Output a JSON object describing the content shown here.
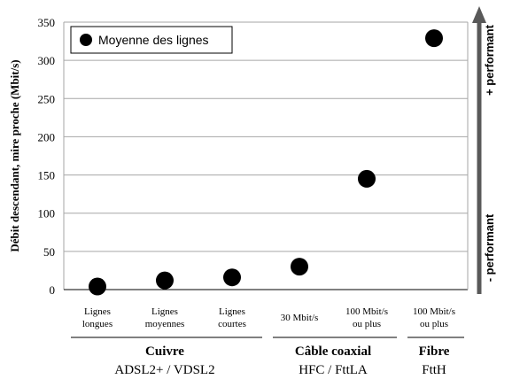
{
  "chart_data": {
    "type": "scatter",
    "ylabel": "Débit descendant, mire proche (Mbit/s)",
    "ylim": [
      0,
      350
    ],
    "yticks": [
      0,
      50,
      100,
      150,
      200,
      250,
      300,
      350
    ],
    "grid": "horizontal",
    "legend_position": "top-left",
    "categories": [
      [
        "Lignes",
        "longues"
      ],
      [
        "Lignes",
        "moyennes"
      ],
      [
        "Lignes",
        "courtes"
      ],
      [
        "30 Mbit/s"
      ],
      [
        "100 Mbit/s",
        "ou plus"
      ],
      [
        "100 Mbit/s",
        "ou plus"
      ]
    ],
    "series": [
      {
        "name": "Moyenne des lignes",
        "values": [
          4,
          12,
          16,
          30,
          145,
          329
        ]
      }
    ],
    "groups": [
      {
        "title": "Cuivre",
        "subtitle": "ADSL2+ / VDSL2",
        "from": 0,
        "to": 2
      },
      {
        "title": "Câble coaxial",
        "subtitle": "HFC / FttLA",
        "from": 3,
        "to": 4
      },
      {
        "title": "Fibre",
        "subtitle": "FttH",
        "from": 5,
        "to": 5
      }
    ],
    "arrow_labels": {
      "top": "+ performant",
      "bottom": "- performant"
    },
    "colors": {
      "marker": "#000000",
      "grid": "#a6a6a6",
      "arrow": "#595959"
    }
  }
}
